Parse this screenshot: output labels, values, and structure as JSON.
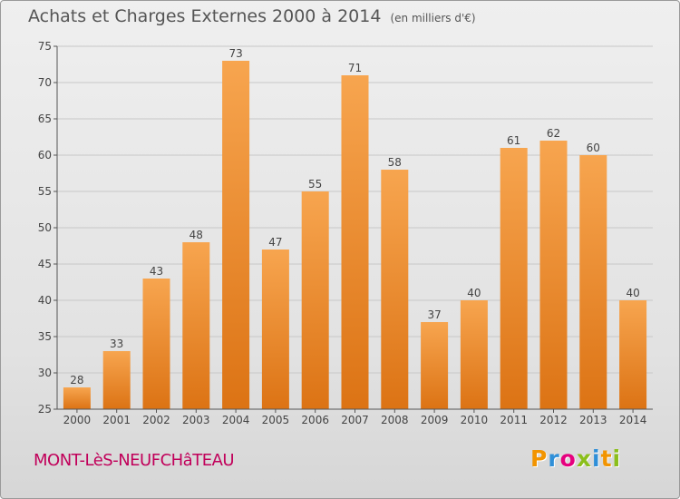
{
  "header": {
    "title": "Achats et Charges Externes 2000 à 2014",
    "unit": "(en milliers d'€)"
  },
  "footer": {
    "commune": "MONT-LèS-NEUFCHâTEAU",
    "logo_letters": [
      "P",
      "r",
      "o",
      "x",
      "i",
      "t",
      "i"
    ],
    "logo_colors": [
      "#f29400",
      "#2f8fd8",
      "#e6007e",
      "#8bbf1b",
      "#2f8fd8",
      "#f29400",
      "#8bbf1b"
    ]
  },
  "colors": {
    "bar_top": "#f7a54f",
    "bar_bottom": "#dc7314",
    "axis": "#555555",
    "grid": "#c8c8c8"
  },
  "chart_data": {
    "type": "bar",
    "categories": [
      "2000",
      "2001",
      "2002",
      "2003",
      "2004",
      "2005",
      "2006",
      "2007",
      "2008",
      "2009",
      "2010",
      "2011",
      "2012",
      "2013",
      "2014"
    ],
    "values": [
      28,
      33,
      43,
      48,
      73,
      47,
      55,
      71,
      58,
      37,
      40,
      61,
      62,
      60,
      40
    ],
    "ylim": [
      25,
      75
    ],
    "yticks": [
      25,
      30,
      35,
      40,
      45,
      50,
      55,
      60,
      65,
      70,
      75
    ],
    "grid": true,
    "data_labels": true
  }
}
